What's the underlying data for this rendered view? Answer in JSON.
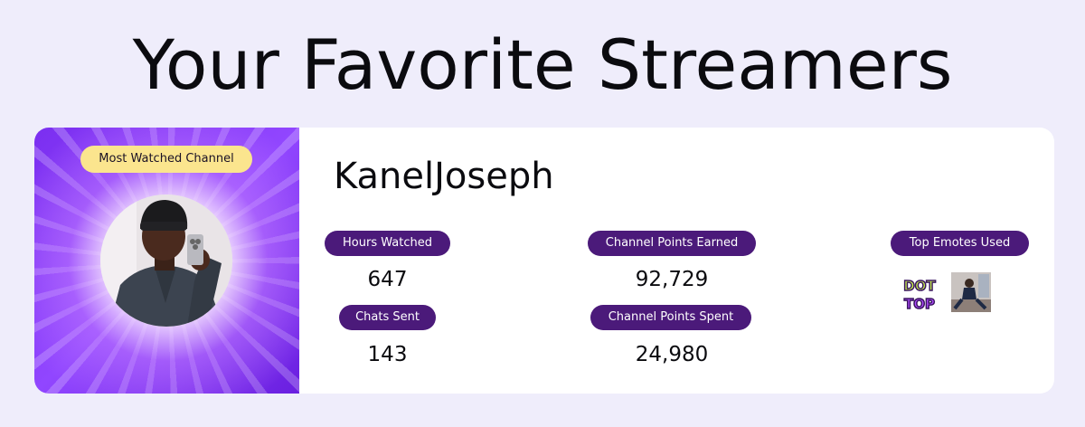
{
  "page": {
    "title": "Your Favorite Streamers"
  },
  "card": {
    "badge": "Most Watched Channel",
    "streamer_name": "KanelJoseph",
    "stats": {
      "hours_watched_label": "Hours Watched",
      "hours_watched_value": "647",
      "chats_sent_label": "Chats Sent",
      "chats_sent_value": "143",
      "points_earned_label": "Channel Points Earned",
      "points_earned_value": "92,729",
      "points_spent_label": "Channel Points Spent",
      "points_spent_value": "24,980",
      "top_emotes_label": "Top Emotes Used"
    },
    "emotes": [
      {
        "name": "dot-top-emote",
        "text_line1": "DOT",
        "text_line2": "TOP"
      },
      {
        "name": "photo-emote"
      }
    ]
  },
  "colors": {
    "background": "#efedfb",
    "badge_yellow": "#fbe58e",
    "pill_purple": "#4b1a7a",
    "hero_purple": "#9146ff"
  }
}
